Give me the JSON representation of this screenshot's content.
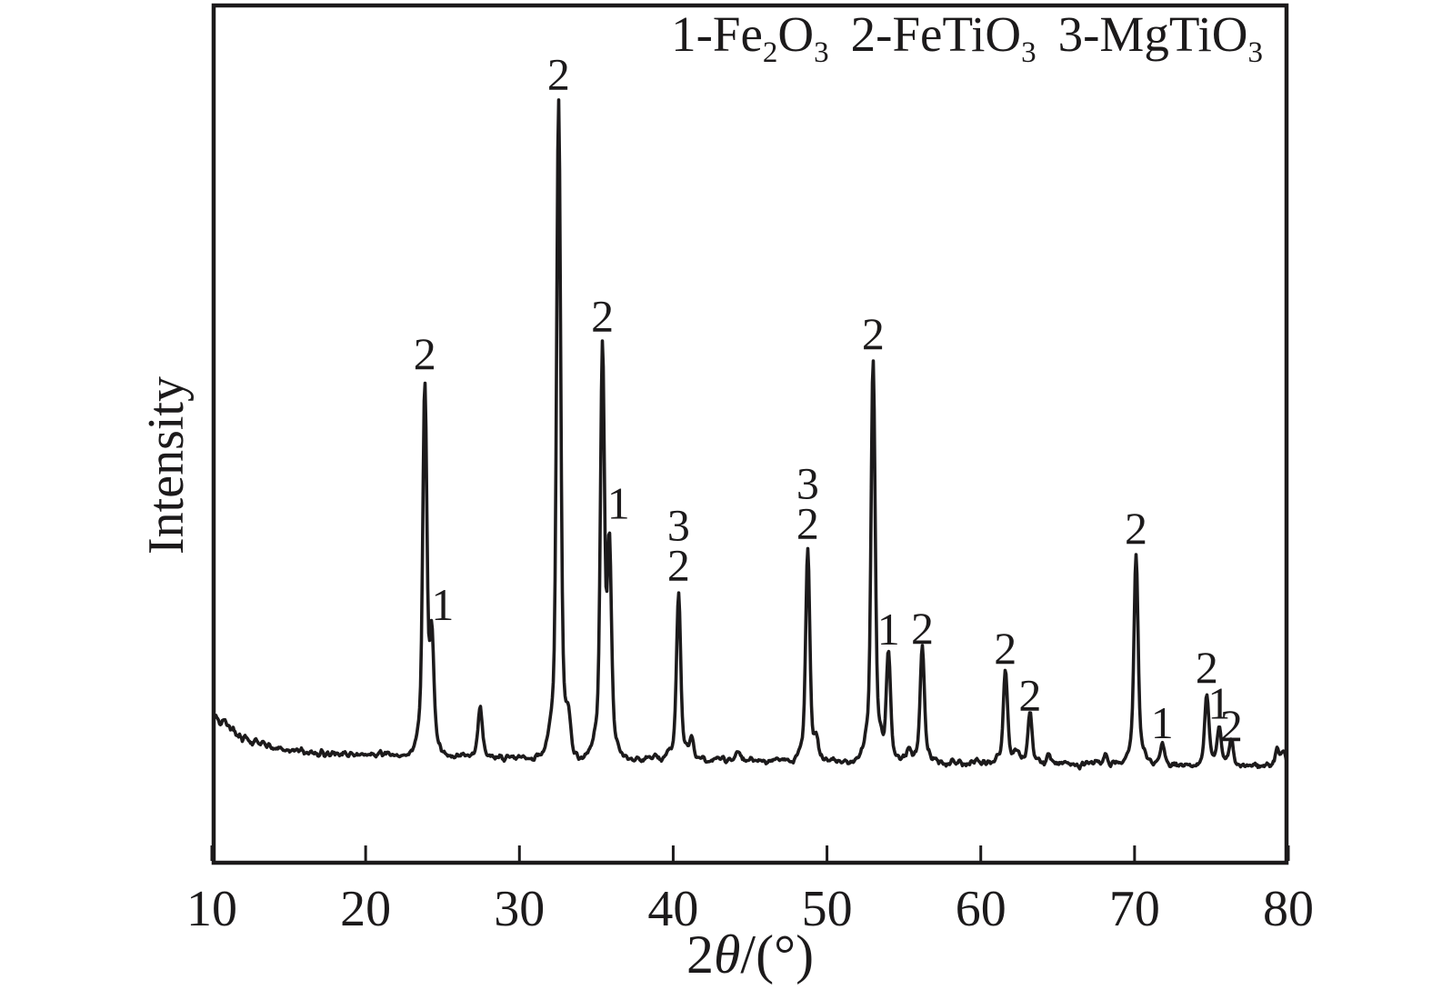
{
  "figure": {
    "background": "#ffffff",
    "ink_color": "#1c1a1b"
  },
  "legend": {
    "items": [
      {
        "name": "phase-1",
        "text": "1-Fe₂O₃",
        "segments": [
          {
            "t": "1-Fe"
          },
          {
            "t": "2",
            "sub": true
          },
          {
            "t": "O"
          },
          {
            "t": "3",
            "sub": true
          }
        ]
      },
      {
        "name": "phase-2",
        "text": "2-FeTiO₃",
        "segments": [
          {
            "t": "2-FeTiO"
          },
          {
            "t": "3",
            "sub": true
          }
        ]
      },
      {
        "name": "phase-3",
        "text": "3-MgTiO₃",
        "segments": [
          {
            "t": "3-MgTiO"
          },
          {
            "t": "3",
            "sub": true
          }
        ]
      }
    ]
  },
  "x_axis": {
    "title_text": "2θ/(°)",
    "title_segments": [
      {
        "t": "2"
      },
      {
        "t": "θ",
        "italic": true
      },
      {
        "t": "/(°)"
      }
    ]
  },
  "y_axis": {
    "title": "Intensity"
  },
  "chart_data": {
    "type": "line",
    "variant": "xrd-powder-diffraction-pattern",
    "title": "",
    "xlabel": "2θ/(°)",
    "ylabel": "Intensity",
    "xlim": [
      10,
      80
    ],
    "x_ticks": [
      10,
      20,
      30,
      40,
      50,
      60,
      70,
      80
    ],
    "y_ticks": [],
    "grid": false,
    "legend_position": "top-right-inside",
    "legend_text": "1-Fe₂O₃ 2-FeTiO₃ 3-MgTiO₃",
    "phase_key": {
      "1": "Fe₂O₃",
      "2": "FeTiO₃",
      "3": "MgTiO₃"
    },
    "intensity_units": "arbitrary units (no y-axis ticks); rel_intensity = % of strongest peak at 32.6°",
    "baseline": {
      "description": "flat noisy background at rel_intensity 0, slightly elevated below ~15° 2θ then decaying",
      "rel_level": 0
    },
    "peaks": [
      {
        "two_theta": 23.85,
        "rel_intensity": 56,
        "labels": [
          "2"
        ]
      },
      {
        "two_theta": 24.3,
        "rel_intensity": 16,
        "labels": [
          "1"
        ],
        "label_dx": 12,
        "label_dy": 10
      },
      {
        "two_theta": 27.45,
        "rel_intensity": 7.5,
        "labels": []
      },
      {
        "two_theta": 32.55,
        "rel_intensity": 100,
        "labels": [
          "2"
        ]
      },
      {
        "two_theta": 33.2,
        "rel_intensity": 4,
        "labels": []
      },
      {
        "two_theta": 35.4,
        "rel_intensity": 61,
        "labels": [
          "2"
        ]
      },
      {
        "two_theta": 35.85,
        "rel_intensity": 30,
        "labels": [
          "1"
        ],
        "label_dx": 10
      },
      {
        "two_theta": 40.35,
        "rel_intensity": 25.5,
        "labels": [
          "3",
          "2"
        ]
      },
      {
        "two_theta": 41.2,
        "rel_intensity": 3.2,
        "labels": []
      },
      {
        "two_theta": 44.2,
        "rel_intensity": 1.1,
        "labels": []
      },
      {
        "two_theta": 48.75,
        "rel_intensity": 32,
        "labels": [
          "3",
          "2"
        ]
      },
      {
        "two_theta": 49.3,
        "rel_intensity": 2.5,
        "labels": []
      },
      {
        "two_theta": 53.0,
        "rel_intensity": 61,
        "labels": [
          "2"
        ]
      },
      {
        "two_theta": 54.0,
        "rel_intensity": 16.5,
        "labels": [
          "1"
        ],
        "label_dy": 6
      },
      {
        "two_theta": 55.3,
        "rel_intensity": 1.8,
        "labels": []
      },
      {
        "two_theta": 56.2,
        "rel_intensity": 18,
        "labels": [
          "2"
        ],
        "label_dy": 12
      },
      {
        "two_theta": 61.6,
        "rel_intensity": 14.5,
        "labels": [
          "2"
        ],
        "label_dy": 8
      },
      {
        "two_theta": 62.3,
        "rel_intensity": 1.6,
        "labels": []
      },
      {
        "two_theta": 63.2,
        "rel_intensity": 8,
        "labels": [
          "2"
        ],
        "label_dy": 12
      },
      {
        "two_theta": 64.4,
        "rel_intensity": 1.2,
        "labels": []
      },
      {
        "two_theta": 68.1,
        "rel_intensity": 1.5,
        "labels": []
      },
      {
        "two_theta": 70.1,
        "rel_intensity": 32,
        "labels": [
          "2"
        ]
      },
      {
        "two_theta": 71.8,
        "rel_intensity": 3.2,
        "labels": [
          "1"
        ],
        "label_dy": 6
      },
      {
        "two_theta": 74.7,
        "rel_intensity": 10.8,
        "labels": [
          "2"
        ]
      },
      {
        "two_theta": 75.5,
        "rel_intensity": 6,
        "labels": [
          "1"
        ],
        "label_dy": 6
      },
      {
        "two_theta": 76.3,
        "rel_intensity": 3.9,
        "labels": [
          "2"
        ],
        "label_dy": 14
      },
      {
        "two_theta": 79.3,
        "rel_intensity": 2.4,
        "labels": []
      },
      {
        "two_theta": 79.7,
        "rel_intensity": 2.2,
        "labels": []
      }
    ]
  }
}
